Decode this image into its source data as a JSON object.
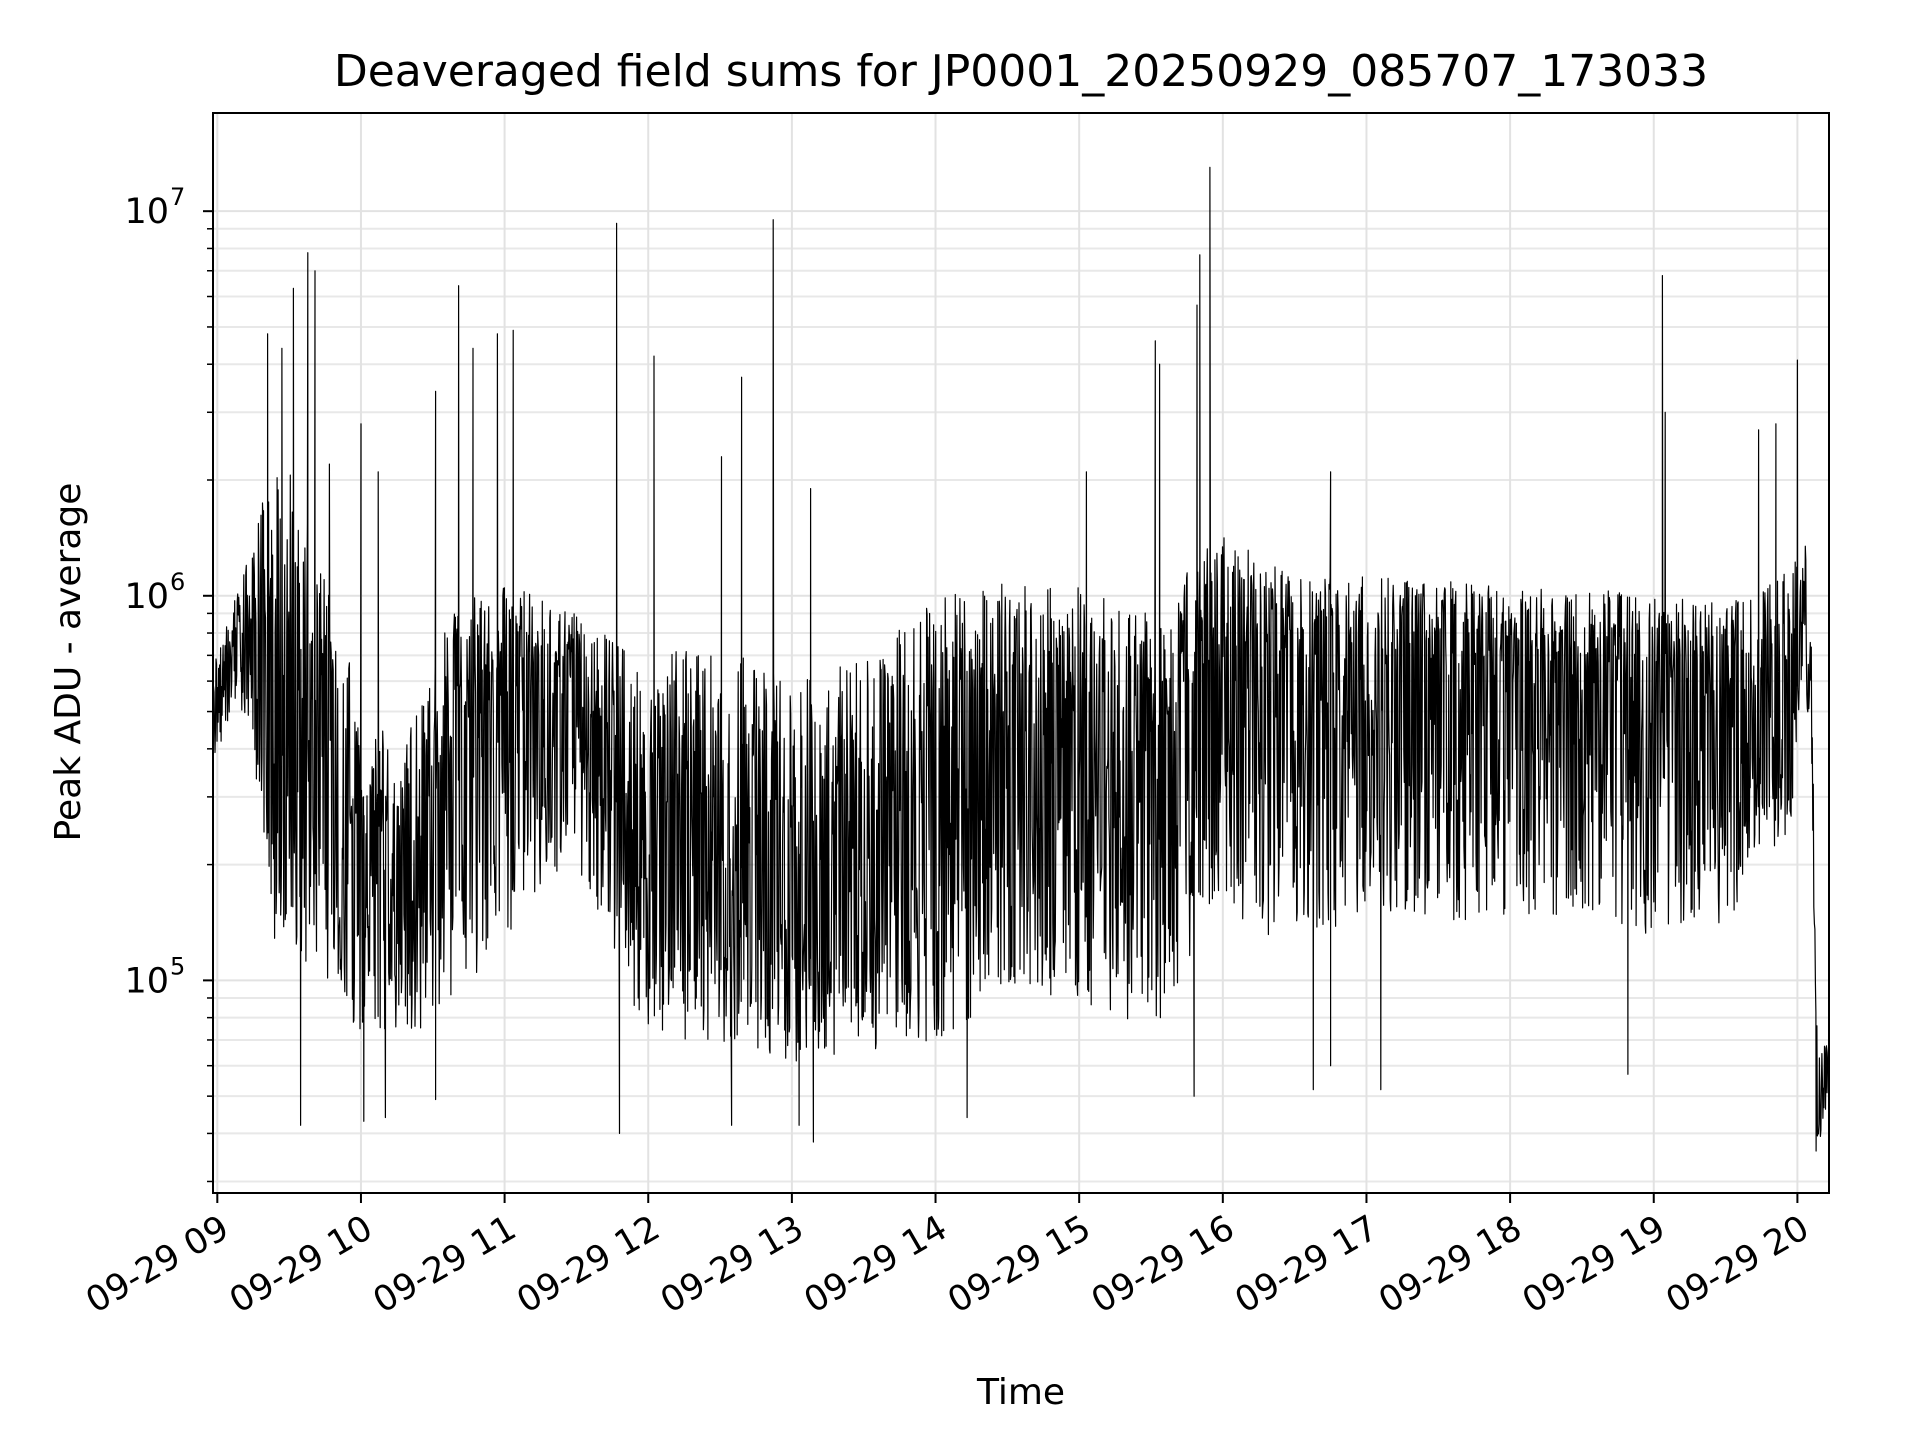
{
  "chart_data": {
    "type": "line",
    "title": "Deaveraged field sums for JP0001_20250929_085707_173033",
    "xlabel": "Time",
    "ylabel": "Peak ADU - average",
    "yscale": "log",
    "ylim": [
      28000,
      18000000
    ],
    "xlim_hours": [
      8.97,
      20.22
    ],
    "grid": true,
    "line_color": "#000000",
    "x_ticks": [
      {
        "hour": 9,
        "label": "09-29 09"
      },
      {
        "hour": 10,
        "label": "09-29 10"
      },
      {
        "hour": 11,
        "label": "09-29 11"
      },
      {
        "hour": 12,
        "label": "09-29 12"
      },
      {
        "hour": 13,
        "label": "09-29 13"
      },
      {
        "hour": 14,
        "label": "09-29 14"
      },
      {
        "hour": 15,
        "label": "09-29 15"
      },
      {
        "hour": 16,
        "label": "09-29 16"
      },
      {
        "hour": 17,
        "label": "09-29 17"
      },
      {
        "hour": 18,
        "label": "09-29 18"
      },
      {
        "hour": 19,
        "label": "09-29 19"
      },
      {
        "hour": 20,
        "label": "09-29 20"
      }
    ],
    "y_ticks": [
      {
        "value": 100000,
        "base": "10",
        "exp": "5"
      },
      {
        "value": 1000000,
        "base": "10",
        "exp": "6"
      },
      {
        "value": 10000000,
        "base": "10",
        "exp": "7"
      }
    ],
    "series": [
      {
        "name": "Peak ADU - average",
        "envelope": [
          {
            "hour": 8.97,
            "median": 500000,
            "low": 380000,
            "high": 650000
          },
          {
            "hour": 9.2,
            "median": 800000,
            "low": 500000,
            "high": 1200000
          },
          {
            "hour": 9.4,
            "median": 450000,
            "low": 120000,
            "high": 2500000
          },
          {
            "hour": 9.7,
            "median": 350000,
            "low": 100000,
            "high": 1500000
          },
          {
            "hour": 10.0,
            "median": 200000,
            "low": 70000,
            "high": 500000
          },
          {
            "hour": 10.3,
            "median": 200000,
            "low": 70000,
            "high": 400000
          },
          {
            "hour": 10.6,
            "median": 350000,
            "low": 80000,
            "high": 900000
          },
          {
            "hour": 11.0,
            "median": 500000,
            "low": 130000,
            "high": 1100000
          },
          {
            "hour": 11.5,
            "median": 550000,
            "low": 200000,
            "high": 900000
          },
          {
            "hour": 12.0,
            "median": 200000,
            "low": 70000,
            "high": 700000
          },
          {
            "hour": 12.5,
            "median": 180000,
            "low": 70000,
            "high": 750000
          },
          {
            "hour": 13.0,
            "median": 150000,
            "low": 60000,
            "high": 600000
          },
          {
            "hour": 13.5,
            "median": 150000,
            "low": 65000,
            "high": 700000
          },
          {
            "hour": 14.0,
            "median": 250000,
            "low": 70000,
            "high": 1000000
          },
          {
            "hour": 14.5,
            "median": 450000,
            "low": 90000,
            "high": 1100000
          },
          {
            "hour": 15.0,
            "median": 400000,
            "low": 90000,
            "high": 1050000
          },
          {
            "hour": 15.5,
            "median": 250000,
            "low": 70000,
            "high": 900000
          },
          {
            "hour": 16.0,
            "median": 800000,
            "low": 150000,
            "high": 1500000
          },
          {
            "hour": 16.5,
            "median": 550000,
            "low": 120000,
            "high": 1100000
          },
          {
            "hour": 17.0,
            "median": 650000,
            "low": 150000,
            "high": 1150000
          },
          {
            "hour": 17.5,
            "median": 600000,
            "low": 140000,
            "high": 1100000
          },
          {
            "hour": 18.0,
            "median": 550000,
            "low": 140000,
            "high": 1050000
          },
          {
            "hour": 18.5,
            "median": 550000,
            "low": 150000,
            "high": 1050000
          },
          {
            "hour": 19.0,
            "median": 550000,
            "low": 130000,
            "high": 1000000
          },
          {
            "hour": 19.5,
            "median": 500000,
            "low": 140000,
            "high": 950000
          },
          {
            "hour": 19.95,
            "median": 600000,
            "low": 250000,
            "high": 1200000
          },
          {
            "hour": 20.05,
            "median": 1100000,
            "low": 700000,
            "high": 1500000
          },
          {
            "hour": 20.1,
            "median": 500000,
            "low": 300000,
            "high": 800000
          },
          {
            "hour": 20.14,
            "median": 45000,
            "low": 36000,
            "high": 60000
          },
          {
            "hour": 20.22,
            "median": 62000,
            "low": 50000,
            "high": 80000
          }
        ],
        "spikes": [
          {
            "hour": 9.35,
            "value": 4800000
          },
          {
            "hour": 9.45,
            "value": 4400000
          },
          {
            "hour": 9.53,
            "value": 6300000
          },
          {
            "hour": 9.63,
            "value": 7800000
          },
          {
            "hour": 9.68,
            "value": 7000000
          },
          {
            "hour": 9.78,
            "value": 2200000
          },
          {
            "hour": 10.0,
            "value": 2800000
          },
          {
            "hour": 10.12,
            "value": 2100000
          },
          {
            "hour": 10.52,
            "value": 3400000
          },
          {
            "hour": 10.68,
            "value": 6400000
          },
          {
            "hour": 10.78,
            "value": 4400000
          },
          {
            "hour": 10.95,
            "value": 4800000
          },
          {
            "hour": 11.06,
            "value": 4900000
          },
          {
            "hour": 11.78,
            "value": 9300000
          },
          {
            "hour": 12.04,
            "value": 4200000
          },
          {
            "hour": 12.51,
            "value": 2300000
          },
          {
            "hour": 12.65,
            "value": 3700000
          },
          {
            "hour": 12.87,
            "value": 9500000
          },
          {
            "hour": 13.13,
            "value": 1900000
          },
          {
            "hour": 15.05,
            "value": 2100000
          },
          {
            "hour": 15.53,
            "value": 4600000
          },
          {
            "hour": 15.56,
            "value": 4000000
          },
          {
            "hour": 15.82,
            "value": 5700000
          },
          {
            "hour": 15.84,
            "value": 7700000
          },
          {
            "hour": 15.91,
            "value": 13000000
          },
          {
            "hour": 16.75,
            "value": 2100000
          },
          {
            "hour": 19.06,
            "value": 6800000
          },
          {
            "hour": 19.08,
            "value": 3000000
          },
          {
            "hour": 19.73,
            "value": 2700000
          },
          {
            "hour": 19.85,
            "value": 2800000
          },
          {
            "hour": 20.0,
            "value": 4100000
          }
        ],
        "dips": [
          {
            "hour": 9.58,
            "value": 42000
          },
          {
            "hour": 10.02,
            "value": 43000
          },
          {
            "hour": 10.17,
            "value": 44000
          },
          {
            "hour": 10.52,
            "value": 49000
          },
          {
            "hour": 11.8,
            "value": 40000
          },
          {
            "hour": 12.58,
            "value": 42000
          },
          {
            "hour": 13.05,
            "value": 42000
          },
          {
            "hour": 13.15,
            "value": 38000
          },
          {
            "hour": 14.22,
            "value": 44000
          },
          {
            "hour": 15.8,
            "value": 50000
          },
          {
            "hour": 16.63,
            "value": 52000
          },
          {
            "hour": 16.75,
            "value": 60000
          },
          {
            "hour": 17.1,
            "value": 52000
          },
          {
            "hour": 18.82,
            "value": 57000
          },
          {
            "hour": 20.13,
            "value": 36000
          }
        ]
      }
    ]
  }
}
